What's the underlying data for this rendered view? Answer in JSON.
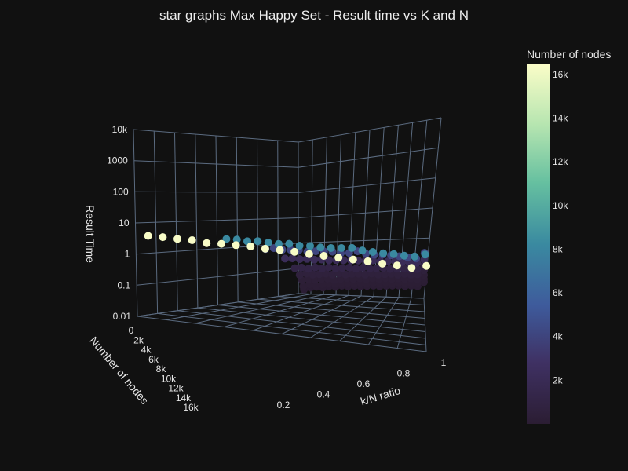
{
  "chart_data": {
    "type": "scatter",
    "title": "star graphs Max Happy Set - Result time vs K and N",
    "colorscale": [
      "#2b1d33",
      "#3f3163",
      "#3e5b9c",
      "#3a8aa0",
      "#66c0a0",
      "#b6e5b0",
      "#fbfdc8"
    ],
    "axes": {
      "z": {
        "label": "Result Time",
        "scale": "log",
        "ticks": [
          "0.01",
          "0.1",
          "1",
          "10",
          "100",
          "1000",
          "10k"
        ],
        "range": [
          0.01,
          10000
        ]
      },
      "y": {
        "label": "Number of nodes",
        "ticks": [
          "0",
          "2k",
          "4k",
          "6k",
          "8k",
          "10k",
          "12k",
          "14k",
          "16k"
        ],
        "range": [
          0,
          16000
        ]
      },
      "x": {
        "label": "k/N ratio",
        "ticks": [
          "0.2",
          "0.4",
          "0.6",
          "0.8",
          "1"
        ],
        "range": [
          0,
          1
        ]
      }
    },
    "colorbar": {
      "title": "Number of nodes",
      "ticks": [
        "2k",
        "4k",
        "6k",
        "8k",
        "10k",
        "12k",
        "14k",
        "16k"
      ],
      "range": [
        0,
        16500
      ]
    },
    "series": [
      {
        "n": 16384,
        "k_ratio": [
          0.05,
          0.1,
          0.15,
          0.2,
          0.25,
          0.3,
          0.35,
          0.4,
          0.45,
          0.5,
          0.55,
          0.6,
          0.65,
          0.7,
          0.75,
          0.8,
          0.85,
          0.9,
          0.95,
          1.0
        ],
        "time": [
          19,
          20,
          20,
          21,
          19,
          21,
          22,
          23,
          22,
          23,
          23,
          22,
          22,
          22,
          22,
          22,
          21,
          21,
          20,
          28
        ]
      },
      {
        "n": 8192,
        "k_ratio": [
          0.05,
          0.1,
          0.15,
          0.2,
          0.25,
          0.3,
          0.35,
          0.4,
          0.45,
          0.5,
          0.55,
          0.6,
          0.65,
          0.7,
          0.75,
          0.8,
          0.85,
          0.9,
          0.95,
          1.0
        ],
        "time": [
          4.6,
          4.8,
          4.5,
          5.0,
          4.8,
          4.7,
          5.2,
          4.8,
          5.1,
          4.9,
          5.1,
          5.6,
          6.2,
          5.4,
          5.2,
          5.0,
          5.1,
          4.9,
          5.0,
          6.5
        ]
      },
      {
        "n": 4096,
        "k_ratio": [
          0.05,
          0.1,
          0.15,
          0.2,
          0.25,
          0.3,
          0.35,
          0.4,
          0.45,
          0.5,
          0.55,
          0.6,
          0.65,
          0.7,
          0.75,
          0.8,
          0.85,
          0.9,
          0.95,
          1.0
        ],
        "time": [
          1.05,
          1.2,
          1.1,
          1.15,
          1.2,
          1.1,
          1.2,
          1.25,
          1.3,
          1.2,
          1.3,
          1.6,
          1.35,
          1.3,
          1.4,
          1.4,
          1.35,
          1.3,
          1.25,
          2.2
        ]
      },
      {
        "n": 2048,
        "k_ratio": [
          0.05,
          0.1,
          0.15,
          0.2,
          0.25,
          0.3,
          0.35,
          0.4,
          0.45,
          0.5,
          0.55,
          0.6,
          0.65,
          0.7,
          0.75,
          0.8,
          0.85,
          0.9,
          0.95,
          1.0
        ],
        "time": [
          0.33,
          0.35,
          0.34,
          0.36,
          0.35,
          0.37,
          0.36,
          0.38,
          0.39,
          0.4,
          0.41,
          0.42,
          0.45,
          0.43,
          0.44,
          0.46,
          0.45,
          0.44,
          0.46,
          0.62
        ]
      },
      {
        "n": 1024,
        "k_ratio": [
          0.05,
          0.1,
          0.15,
          0.2,
          0.25,
          0.3,
          0.35,
          0.4,
          0.45,
          0.5,
          0.55,
          0.6,
          0.65,
          0.7,
          0.75,
          0.8,
          0.85,
          0.9,
          0.95,
          1.0
        ],
        "time": [
          0.12,
          0.13,
          0.12,
          0.14,
          0.13,
          0.15,
          0.14,
          0.15,
          0.16,
          0.15,
          0.17,
          0.16,
          0.17,
          0.18,
          0.17,
          0.18,
          0.19,
          0.18,
          0.19,
          0.28
        ]
      },
      {
        "n": 512,
        "k_ratio": [
          0.05,
          0.1,
          0.15,
          0.2,
          0.25,
          0.3,
          0.35,
          0.4,
          0.45,
          0.5,
          0.55,
          0.6,
          0.65,
          0.7,
          0.75,
          0.8,
          0.85,
          0.9,
          0.95,
          1.0
        ],
        "time": [
          0.06,
          0.07,
          0.065,
          0.07,
          0.075,
          0.07,
          0.08,
          0.075,
          0.08,
          0.085,
          0.08,
          0.09,
          0.085,
          0.09,
          0.095,
          0.09,
          0.1,
          0.095,
          0.1,
          0.15
        ]
      },
      {
        "n": 256,
        "k_ratio": [
          0.05,
          0.1,
          0.15,
          0.2,
          0.25,
          0.3,
          0.35,
          0.4,
          0.45,
          0.5,
          0.55,
          0.6,
          0.65,
          0.7,
          0.75,
          0.8,
          0.85,
          0.9,
          0.95,
          1.0
        ],
        "time": [
          0.035,
          0.04,
          0.038,
          0.042,
          0.045,
          0.04,
          0.046,
          0.05,
          0.048,
          0.052,
          0.05,
          0.055,
          0.053,
          0.058,
          0.056,
          0.06,
          0.058,
          0.062,
          0.06,
          0.09
        ]
      },
      {
        "n": 128,
        "k_ratio": [
          0.05,
          0.1,
          0.15,
          0.2,
          0.25,
          0.3,
          0.35,
          0.4,
          0.45,
          0.5,
          0.55,
          0.6,
          0.65,
          0.7,
          0.75,
          0.8,
          0.85,
          0.9,
          0.95,
          1.0
        ],
        "time": [
          0.02,
          0.025,
          0.022,
          0.026,
          0.03,
          0.028,
          0.03,
          0.032,
          0.03,
          0.034,
          0.033,
          0.036,
          0.035,
          0.038,
          0.036,
          0.04,
          0.038,
          0.04,
          0.042,
          0.06
        ]
      },
      {
        "n": 64,
        "k_ratio": [
          0.05,
          0.1,
          0.15,
          0.2,
          0.25,
          0.3,
          0.35,
          0.4,
          0.45,
          0.5,
          0.55,
          0.6,
          0.65,
          0.7,
          0.75,
          0.8,
          0.85,
          0.9,
          0.95,
          1.0
        ],
        "time": [
          0.015,
          0.018,
          0.02,
          0.019,
          0.022,
          0.021,
          0.024,
          0.023,
          0.025,
          0.024,
          0.026,
          0.027,
          0.026,
          0.028,
          0.029,
          0.03,
          0.029,
          0.031,
          0.03,
          0.045
        ]
      }
    ]
  }
}
